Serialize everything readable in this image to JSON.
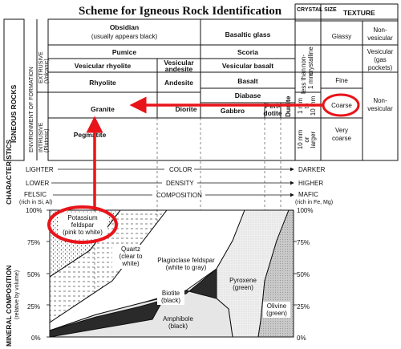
{
  "title": "Scheme for Igneous Rock Identification",
  "headers": {
    "crystal_size": "CRYSTAL SIZE",
    "texture": "TEXTURE",
    "igneous_rocks": "IGNEOUS ROCKS",
    "environment": "ENVIRONMENT OF FORMATION",
    "extrusive": "EXTRUSIVE",
    "volcanic": "(Volcanic)",
    "intrusive": "INTRUSIVE",
    "plutonic": "(Plutonic)",
    "characteristics": "CHARACTERISTICS",
    "mineral_composition": "MINERAL COMPOSITION",
    "relative_by_volume": "(relative by volume)"
  },
  "rocks": {
    "obsidian": "Obsidian",
    "obsidian_note": "(usually appears black)",
    "basaltic_glass": "Basaltic glass",
    "pumice": "Pumice",
    "scoria": "Scoria",
    "vesicular_rhyolite": "Vesicular rhyolite",
    "vesicular_andesite_1": "Vesicular",
    "vesicular_andesite_2": "andesite",
    "vesicular_basalt": "Vesicular basalt",
    "rhyolite": "Rhyolite",
    "andesite": "Andesite",
    "basalt": "Basalt",
    "diabase": "Diabase",
    "granite": "Granite",
    "diorite": "Diorite",
    "gabbro": "Gabbro",
    "peridotite_1": "Peri-",
    "peridotite_2": "dotite",
    "dunite": "Dunite",
    "pegmatite": "Pegmatite"
  },
  "crystal_sizes": {
    "noncrystalline_1": "non-",
    "noncrystalline_2": "crystalline",
    "less_than_1mm_1": "less than",
    "less_than_1mm_2": "1 mm",
    "one_to_ten_1": "1 mm",
    "one_to_ten_2": "to",
    "one_to_ten_3": "10 mm",
    "ten_or_larger_1": "10 mm",
    "ten_or_larger_2": "or",
    "ten_or_larger_3": "larger"
  },
  "textures": {
    "glassy": "Glassy",
    "nonvesicular_1": "Non-",
    "nonvesicular_2": "vesicular",
    "vesicular_1": "Vesicular",
    "vesicular_2": "(gas",
    "vesicular_3": "pockets)",
    "fine": "Fine",
    "coarse": "Coarse",
    "nonvesicular_b1": "Non-",
    "nonvesicular_b2": "vesicular",
    "very_coarse_1": "Very",
    "very_coarse_2": "coarse"
  },
  "characteristics": {
    "lighter": "LIGHTER",
    "darker": "DARKER",
    "color": "COLOR",
    "lower": "LOWER",
    "higher": "HIGHER",
    "density": "DENSITY",
    "felsic": "FELSIC",
    "felsic_note": "(rich in Si, Al)",
    "mafic": "MAFIC",
    "mafic_note": "(rich in Fe, Mg)",
    "composition": "COMPOSITION"
  },
  "percent_ticks": [
    "100%",
    "75%",
    "50%",
    "25%",
    "0%"
  ],
  "minerals": {
    "potassium_1": "Potassium",
    "potassium_2": "feldspar",
    "potassium_3": "(pink to white)",
    "quartz_1": "Quartz",
    "quartz_2": "(clear to",
    "quartz_3": "white)",
    "plagioclase_1": "Plagioclase feldspar",
    "plagioclase_2": "(white to gray)",
    "biotite_1": "Biotite",
    "biotite_2": "(black)",
    "amphibole_1": "Amphibole",
    "amphibole_2": "(black)",
    "pyroxene_1": "Pyroxene",
    "pyroxene_2": "(green)",
    "olivine_1": "Olivine",
    "olivine_2": "(green)"
  },
  "colors": {
    "highlight": "#e8141a",
    "ink": "#111111",
    "dark_fill": "#2a2a2a",
    "olivine_fill": "#d4d4d4",
    "pyroxene_fill": "#eeeeee"
  }
}
